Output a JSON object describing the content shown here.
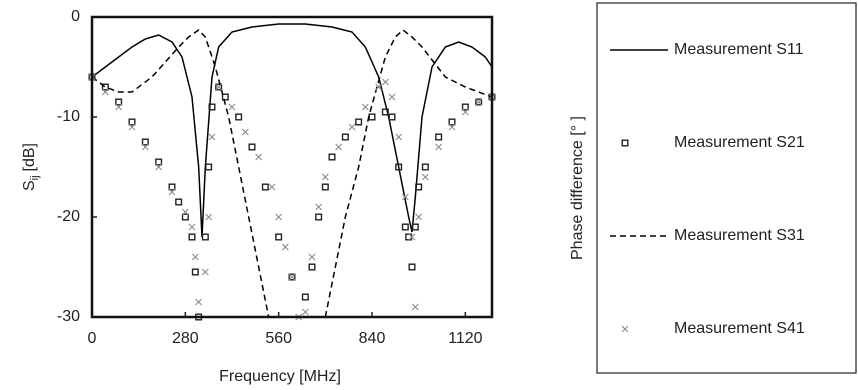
{
  "chart_data": {
    "type": "scatter",
    "xlabel": "Frequency [MHz]",
    "ylabel_main": "S",
    "ylabel_sub": "ij",
    "ylabel_unit": "[dB]",
    "side_label": "Phase difference [° ]",
    "xlim": [
      0,
      1200
    ],
    "ylim": [
      -30,
      0
    ],
    "xticks": [
      0,
      280,
      560,
      840,
      1120
    ],
    "yticks": [
      0,
      -10,
      -20,
      -30
    ],
    "series": [
      {
        "name": "Measurement S11",
        "style": "line",
        "color": "#000000",
        "x": [
          0,
          40,
          80,
          120,
          160,
          200,
          240,
          270,
          300,
          320,
          330,
          340,
          360,
          380,
          420,
          480,
          560,
          640,
          720,
          780,
          820,
          860,
          890,
          920,
          950,
          960,
          970,
          990,
          1020,
          1060,
          1100,
          1140,
          1180,
          1200
        ],
        "values": [
          -6,
          -5,
          -4,
          -3,
          -2.2,
          -1.8,
          -2.5,
          -4,
          -8,
          -15,
          -22,
          -15,
          -6,
          -3,
          -1.5,
          -1,
          -0.7,
          -0.7,
          -1,
          -1.5,
          -3,
          -6,
          -10,
          -15,
          -20,
          -21.5,
          -18,
          -10,
          -5,
          -3,
          -2.5,
          -3,
          -4,
          -5
        ]
      },
      {
        "name": "Measurement S21",
        "style": "square",
        "color": "#222222",
        "x": [
          0,
          40,
          80,
          120,
          160,
          200,
          240,
          260,
          280,
          300,
          310,
          320,
          340,
          350,
          360,
          380,
          400,
          440,
          480,
          520,
          560,
          600,
          640,
          660,
          680,
          700,
          720,
          760,
          800,
          840,
          880,
          900,
          920,
          940,
          950,
          960,
          970,
          980,
          1000,
          1040,
          1080,
          1120,
          1160,
          1200
        ],
        "values": [
          -6,
          -7,
          -8.5,
          -10.5,
          -12.5,
          -14.5,
          -17,
          -18.5,
          -20,
          -22,
          -25.5,
          -30,
          -22,
          -15,
          -9,
          -7,
          -8,
          -10,
          -13,
          -17,
          -22,
          -26,
          -28,
          -25,
          -20,
          -17,
          -14,
          -12,
          -10.5,
          -10,
          -9.5,
          -10,
          -15,
          -21,
          -22,
          -25,
          -21,
          -17,
          -15,
          -12,
          -10.5,
          -9,
          -8.5,
          -8
        ]
      },
      {
        "name": "Measurement S31",
        "style": "dashed",
        "color": "#000000",
        "x": [
          0,
          40,
          80,
          120,
          180,
          220,
          260,
          290,
          320,
          340,
          370,
          410,
          440,
          470,
          500,
          530,
          600,
          700,
          730,
          760,
          800,
          830,
          880,
          910,
          933,
          960,
          990,
          1060,
          1120,
          1160,
          1200
        ],
        "values": [
          -6,
          -7,
          -7.5,
          -7.5,
          -6,
          -4.5,
          -3,
          -2,
          -1.3,
          -2,
          -5,
          -10,
          -15,
          -20,
          -25,
          -30,
          null,
          -30,
          -25,
          -20,
          -15,
          -10,
          -4,
          -2,
          -1.3,
          -2,
          -3,
          -6,
          -7,
          -7.5,
          -8
        ]
      },
      {
        "name": "Measurement S41",
        "style": "cross",
        "color": "#8a8a8a",
        "x": [
          0,
          40,
          80,
          120,
          160,
          200,
          240,
          280,
          300,
          310,
          320,
          340,
          350,
          360,
          380,
          420,
          460,
          500,
          540,
          560,
          580,
          600,
          620,
          640,
          660,
          680,
          700,
          740,
          780,
          820,
          860,
          880,
          900,
          920,
          940,
          960,
          970,
          980,
          1000,
          1040,
          1080,
          1120,
          1160,
          1200
        ],
        "values": [
          -6,
          -7.5,
          -9,
          -11,
          -13,
          -15,
          -17.5,
          -19.5,
          -21,
          -24,
          -28.5,
          -25.5,
          -20,
          -12,
          -7,
          -9,
          -11.5,
          -14,
          -17,
          -20,
          -23,
          -26,
          -30,
          -29.5,
          -24,
          -19,
          -16,
          -13,
          -11,
          -9,
          -7,
          -6.5,
          -8,
          -12,
          -18,
          -22,
          -29,
          -20,
          -16,
          -13,
          -11,
          -9.5,
          -8.5,
          -8
        ]
      }
    ]
  }
}
